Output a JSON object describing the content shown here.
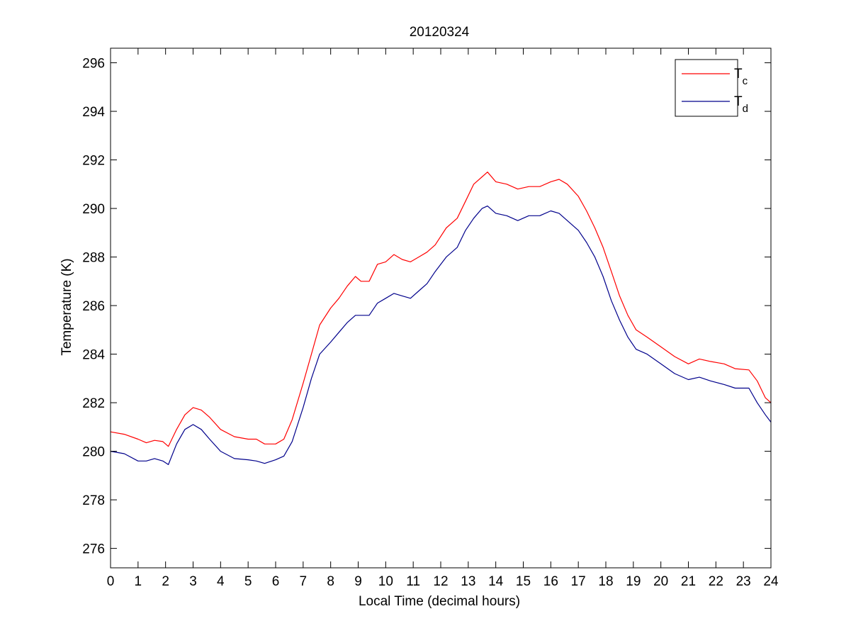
{
  "chart_data": {
    "type": "line",
    "title": "20120324",
    "xlabel": "Local Time (decimal hours)",
    "ylabel": "Temperature (K)",
    "xlim": [
      0,
      24
    ],
    "ylim": [
      275.2,
      296.6
    ],
    "xticks": [
      0,
      1,
      2,
      3,
      4,
      5,
      6,
      7,
      8,
      9,
      10,
      11,
      12,
      13,
      14,
      15,
      16,
      17,
      18,
      19,
      20,
      21,
      22,
      23,
      24
    ],
    "yticks": [
      276,
      278,
      280,
      282,
      284,
      286,
      288,
      290,
      292,
      294,
      296
    ],
    "grid": false,
    "legend_position": "top-right",
    "series": [
      {
        "name": "Tc",
        "name_main": "T",
        "name_sub": "c",
        "color": "#ff0000",
        "points": [
          [
            0,
            280.8
          ],
          [
            0.5,
            280.7
          ],
          [
            1,
            280.5
          ],
          [
            1.3,
            280.35
          ],
          [
            1.6,
            280.45
          ],
          [
            1.9,
            280.4
          ],
          [
            2.1,
            280.2
          ],
          [
            2.4,
            280.9
          ],
          [
            2.7,
            281.5
          ],
          [
            3.0,
            281.8
          ],
          [
            3.3,
            281.7
          ],
          [
            3.6,
            281.4
          ],
          [
            4.0,
            280.9
          ],
          [
            4.5,
            280.6
          ],
          [
            5.0,
            280.5
          ],
          [
            5.3,
            280.5
          ],
          [
            5.6,
            280.3
          ],
          [
            6.0,
            280.3
          ],
          [
            6.3,
            280.5
          ],
          [
            6.6,
            281.3
          ],
          [
            7.0,
            282.8
          ],
          [
            7.3,
            284.0
          ],
          [
            7.6,
            285.2
          ],
          [
            8.0,
            285.9
          ],
          [
            8.3,
            286.3
          ],
          [
            8.6,
            286.8
          ],
          [
            8.9,
            287.2
          ],
          [
            9.1,
            287.0
          ],
          [
            9.4,
            287.0
          ],
          [
            9.7,
            287.7
          ],
          [
            10.0,
            287.8
          ],
          [
            10.3,
            288.1
          ],
          [
            10.6,
            287.9
          ],
          [
            10.9,
            287.8
          ],
          [
            11.2,
            288.0
          ],
          [
            11.5,
            288.2
          ],
          [
            11.8,
            288.5
          ],
          [
            12.2,
            289.2
          ],
          [
            12.6,
            289.6
          ],
          [
            12.9,
            290.3
          ],
          [
            13.2,
            291.0
          ],
          [
            13.5,
            291.3
          ],
          [
            13.7,
            291.5
          ],
          [
            14.0,
            291.1
          ],
          [
            14.4,
            291.0
          ],
          [
            14.8,
            290.8
          ],
          [
            15.2,
            290.9
          ],
          [
            15.6,
            290.9
          ],
          [
            16.0,
            291.1
          ],
          [
            16.3,
            291.2
          ],
          [
            16.6,
            291.0
          ],
          [
            17.0,
            290.5
          ],
          [
            17.3,
            289.9
          ],
          [
            17.6,
            289.2
          ],
          [
            17.9,
            288.4
          ],
          [
            18.2,
            287.4
          ],
          [
            18.5,
            286.4
          ],
          [
            18.8,
            285.6
          ],
          [
            19.1,
            285.0
          ],
          [
            19.5,
            284.7
          ],
          [
            20.0,
            284.3
          ],
          [
            20.5,
            283.9
          ],
          [
            21.0,
            283.6
          ],
          [
            21.4,
            283.8
          ],
          [
            21.8,
            283.7
          ],
          [
            22.3,
            283.6
          ],
          [
            22.7,
            283.4
          ],
          [
            23.2,
            283.35
          ],
          [
            23.5,
            282.9
          ],
          [
            23.8,
            282.2
          ],
          [
            24.0,
            282.0
          ]
        ]
      },
      {
        "name": "Td",
        "name_main": "T",
        "name_sub": "d",
        "color": "#00008b",
        "points": [
          [
            0,
            280.0
          ],
          [
            0.5,
            279.9
          ],
          [
            1,
            279.6
          ],
          [
            1.3,
            279.6
          ],
          [
            1.6,
            279.7
          ],
          [
            1.9,
            279.6
          ],
          [
            2.1,
            279.45
          ],
          [
            2.4,
            280.3
          ],
          [
            2.7,
            280.9
          ],
          [
            3.0,
            281.1
          ],
          [
            3.3,
            280.9
          ],
          [
            3.6,
            280.5
          ],
          [
            4.0,
            280.0
          ],
          [
            4.5,
            279.7
          ],
          [
            5.0,
            279.65
          ],
          [
            5.3,
            279.6
          ],
          [
            5.6,
            279.5
          ],
          [
            6.0,
            279.65
          ],
          [
            6.3,
            279.8
          ],
          [
            6.6,
            280.4
          ],
          [
            7.0,
            281.8
          ],
          [
            7.3,
            283.0
          ],
          [
            7.6,
            284.0
          ],
          [
            8.0,
            284.5
          ],
          [
            8.3,
            284.9
          ],
          [
            8.6,
            285.3
          ],
          [
            8.9,
            285.6
          ],
          [
            9.1,
            285.6
          ],
          [
            9.4,
            285.6
          ],
          [
            9.7,
            286.1
          ],
          [
            10.0,
            286.3
          ],
          [
            10.3,
            286.5
          ],
          [
            10.6,
            286.4
          ],
          [
            10.9,
            286.3
          ],
          [
            11.2,
            286.6
          ],
          [
            11.5,
            286.9
          ],
          [
            11.8,
            287.4
          ],
          [
            12.2,
            288.0
          ],
          [
            12.6,
            288.4
          ],
          [
            12.9,
            289.1
          ],
          [
            13.2,
            289.6
          ],
          [
            13.5,
            290.0
          ],
          [
            13.7,
            290.1
          ],
          [
            14.0,
            289.8
          ],
          [
            14.4,
            289.7
          ],
          [
            14.8,
            289.5
          ],
          [
            15.2,
            289.7
          ],
          [
            15.6,
            289.7
          ],
          [
            16.0,
            289.9
          ],
          [
            16.3,
            289.8
          ],
          [
            16.6,
            289.5
          ],
          [
            17.0,
            289.1
          ],
          [
            17.3,
            288.6
          ],
          [
            17.6,
            288.0
          ],
          [
            17.9,
            287.2
          ],
          [
            18.2,
            286.2
          ],
          [
            18.5,
            285.4
          ],
          [
            18.8,
            284.7
          ],
          [
            19.1,
            284.2
          ],
          [
            19.5,
            284.0
          ],
          [
            20.0,
            283.6
          ],
          [
            20.5,
            283.2
          ],
          [
            21.0,
            282.95
          ],
          [
            21.4,
            283.05
          ],
          [
            21.8,
            282.9
          ],
          [
            22.3,
            282.75
          ],
          [
            22.7,
            282.6
          ],
          [
            23.2,
            282.6
          ],
          [
            23.5,
            282.0
          ],
          [
            23.8,
            281.5
          ],
          [
            24.0,
            281.2
          ]
        ]
      }
    ]
  }
}
